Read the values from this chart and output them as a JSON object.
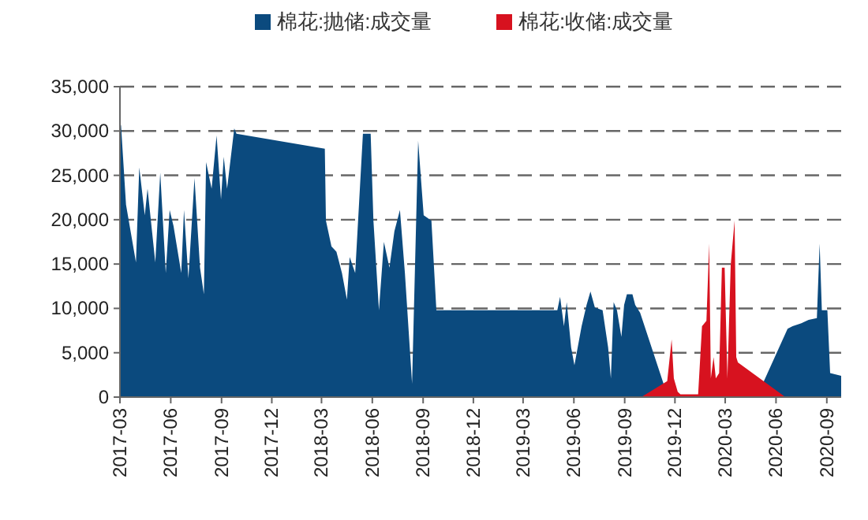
{
  "chart_data": {
    "type": "area",
    "legend": "top",
    "grid": "y",
    "xlim": [
      "2017-03-01",
      "2020-09-27"
    ],
    "xticks": [
      {
        "value": "2017-03-01",
        "label": "2017-03"
      },
      {
        "value": "2017-06-01",
        "label": "2017-06"
      },
      {
        "value": "2017-09-01",
        "label": "2017-09"
      },
      {
        "value": "2017-12-01",
        "label": "2017-12"
      },
      {
        "value": "2018-03-01",
        "label": "2018-03"
      },
      {
        "value": "2018-06-01",
        "label": "2018-06"
      },
      {
        "value": "2018-09-01",
        "label": "2018-09"
      },
      {
        "value": "2018-12-01",
        "label": "2018-12"
      },
      {
        "value": "2019-03-01",
        "label": "2019-03"
      },
      {
        "value": "2019-06-01",
        "label": "2019-06"
      },
      {
        "value": "2019-09-01",
        "label": "2019-09"
      },
      {
        "value": "2019-12-01",
        "label": "2019-12"
      },
      {
        "value": "2020-03-01",
        "label": "2020-03"
      },
      {
        "value": "2020-06-01",
        "label": "2020-06"
      },
      {
        "value": "2020-09-01",
        "label": "2020-09"
      }
    ],
    "ylim": [
      0,
      35000
    ],
    "yticks": [
      0,
      {
        "value": 5000,
        "label": "5,000"
      },
      {
        "value": 10000,
        "label": "10,000"
      },
      {
        "value": 15000,
        "label": "15,000"
      },
      {
        "value": 20000,
        "label": "20,000"
      },
      {
        "value": 25000,
        "label": "25,000"
      },
      {
        "value": 30000,
        "label": "30,000"
      },
      {
        "value": 35000,
        "label": "35,000"
      }
    ],
    "series": [
      {
        "name": "棉花:抛储:成交量",
        "color": "#0b4a7e",
        "x": [
          "2017-03-01",
          "2017-03-03",
          "2017-03-12",
          "2017-03-30",
          "2017-04-05",
          "2017-04-15",
          "2017-04-20",
          "2017-05-04",
          "2017-05-13",
          "2017-05-23",
          "2017-05-30",
          "2017-06-06",
          "2017-06-20",
          "2017-06-25",
          "2017-07-03",
          "2017-07-14",
          "2017-07-24",
          "2017-07-31",
          "2017-08-04",
          "2017-08-14",
          "2017-08-23",
          "2017-08-31",
          "2017-09-05",
          "2017-09-11",
          "2017-09-24",
          "2017-09-28",
          "2018-03-07",
          "2018-03-09",
          "2018-03-19",
          "2018-03-28",
          "2018-04-07",
          "2018-04-16",
          "2018-04-21",
          "2018-05-01",
          "2018-05-15",
          "2018-05-29",
          "2018-06-03",
          "2018-06-13",
          "2018-06-22",
          "2018-07-02",
          "2018-07-11",
          "2018-07-21",
          "2018-07-30",
          "2018-08-12",
          "2018-08-23",
          "2018-09-02",
          "2018-09-16",
          "2018-09-25",
          "2018-12-01",
          "2019-05-02",
          "2019-05-07",
          "2019-05-14",
          "2019-05-19",
          "2019-05-27",
          "2019-06-02",
          "2019-06-15",
          "2019-06-24",
          "2019-07-01",
          "2019-07-09",
          "2019-07-23",
          "2019-08-02",
          "2019-08-07",
          "2019-08-12",
          "2019-08-18",
          "2019-08-26",
          "2019-08-31",
          "2019-09-05",
          "2019-09-15",
          "2019-09-20",
          "2019-09-29",
          "2019-11-12",
          "2019-11-20",
          "2020-04-27",
          "2020-06-22",
          "2020-07-01",
          "2020-07-16",
          "2020-07-30",
          "2020-08-14",
          "2020-08-19",
          "2020-08-23",
          "2020-09-02",
          "2020-09-07",
          "2020-09-27"
        ],
        "values": [
          31000,
          30600,
          21700,
          15200,
          25900,
          20500,
          23500,
          15200,
          25300,
          14000,
          21100,
          19300,
          14000,
          21100,
          13400,
          24700,
          14600,
          11600,
          26500,
          23500,
          29500,
          22300,
          27100,
          23500,
          30300,
          29700,
          28000,
          19900,
          17000,
          16400,
          14000,
          11000,
          15800,
          14000,
          29700,
          29700,
          19900,
          9800,
          17500,
          14600,
          18700,
          21100,
          14000,
          1500,
          28900,
          20500,
          19900,
          9800,
          9800,
          9800,
          11300,
          8000,
          10700,
          5600,
          3600,
          8000,
          10400,
          11900,
          10100,
          9800,
          5600,
          2100,
          10700,
          9800,
          6800,
          10400,
          11600,
          11600,
          10400,
          9500,
          1200,
          0,
          0,
          7700,
          8000,
          8300,
          8700,
          8900,
          17300,
          9800,
          9800,
          2700,
          2400
        ]
      },
      {
        "name": "棉花:收储:成交量",
        "color": "#d7121f",
        "x": [
          "2019-10-01",
          "2019-11-17",
          "2019-11-25",
          "2019-11-29",
          "2019-12-06",
          "2019-12-11",
          "2020-01-12",
          "2020-01-19",
          "2020-01-27",
          "2020-02-01",
          "2020-02-04",
          "2020-02-09",
          "2020-02-13",
          "2020-02-19",
          "2020-02-24",
          "2020-02-29",
          "2020-03-05",
          "2020-03-11",
          "2020-03-18",
          "2020-03-21",
          "2020-03-24",
          "2020-06-18"
        ],
        "values": [
          0,
          1800,
          6500,
          2100,
          600,
          300,
          300,
          8000,
          8600,
          17300,
          2100,
          4500,
          2100,
          2700,
          14600,
          14600,
          2100,
          14900,
          19900,
          4500,
          3900,
          0
        ]
      }
    ]
  }
}
